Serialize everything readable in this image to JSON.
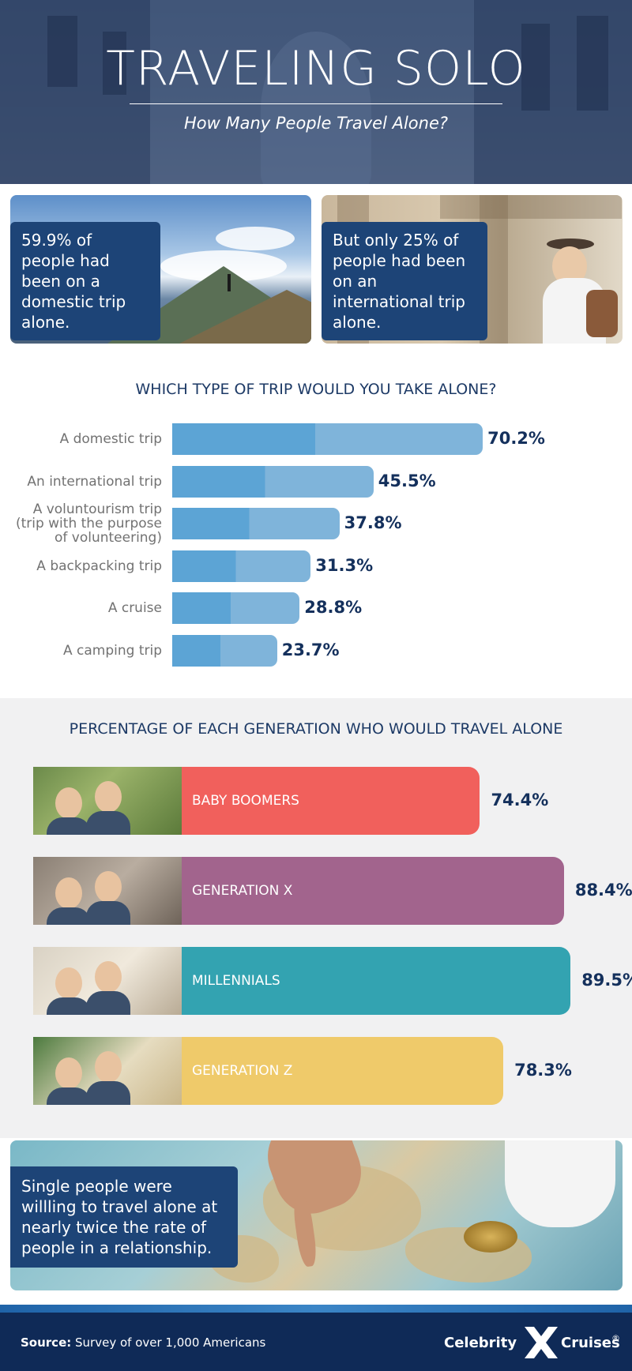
{
  "header": {
    "title": "TRAVELING SOLO",
    "subtitle": "How Many People Travel Alone?"
  },
  "cards": {
    "left_text": "59.9% of people had been on a domestic trip alone.",
    "right_text": "But only 25% of people had been on an international trip alone."
  },
  "chart_data": [
    {
      "type": "bar",
      "orientation": "horizontal",
      "title": "WHICH TYPE OF TRIP WOULD YOU TAKE ALONE?",
      "categories": [
        "A domestic trip",
        "An international trip",
        "A voluntourism trip (trip with the purpose of volunteering)",
        "A backpacking trip",
        "A cruise",
        "A camping trip"
      ],
      "category_lines": [
        [
          "A domestic trip"
        ],
        [
          "An international trip"
        ],
        [
          "A voluntourism trip",
          "(trip with the purpose",
          "of volunteering)"
        ],
        [
          "A backpacking trip"
        ],
        [
          "A cruise"
        ],
        [
          "A camping trip"
        ]
      ],
      "values": [
        70.2,
        45.5,
        37.8,
        31.3,
        28.8,
        23.7
      ],
      "value_labels": [
        "70.2%",
        "45.5%",
        "37.8%",
        "31.3%",
        "28.8%",
        "23.7%"
      ],
      "xlim": [
        0,
        100
      ],
      "color": "#5ca4d5"
    },
    {
      "type": "bar",
      "orientation": "horizontal",
      "title": "PERCENTAGE OF EACH GENERATION WHO WOULD TRAVEL ALONE",
      "categories": [
        "BABY BOOMERS",
        "GENERATION X",
        "MILLENNIALS",
        "GENERATION Z"
      ],
      "values": [
        74.4,
        88.4,
        89.5,
        78.3
      ],
      "value_labels": [
        "74.4%",
        "88.4%",
        "89.5%",
        "78.3%"
      ],
      "xlim": [
        0,
        100
      ],
      "colors": [
        "#f1605c",
        "#a2648d",
        "#33a3b1",
        "#efca6a"
      ]
    }
  ],
  "map_card": {
    "text": "Single people were willling to travel alone at nearly twice the rate of people in a relationship."
  },
  "footer": {
    "source_label": "Source:",
    "source_text": "Survey of over 1,000 Americans",
    "brand_left": "Celebrity",
    "brand_right": "Cruises",
    "brand_registered": "®"
  }
}
